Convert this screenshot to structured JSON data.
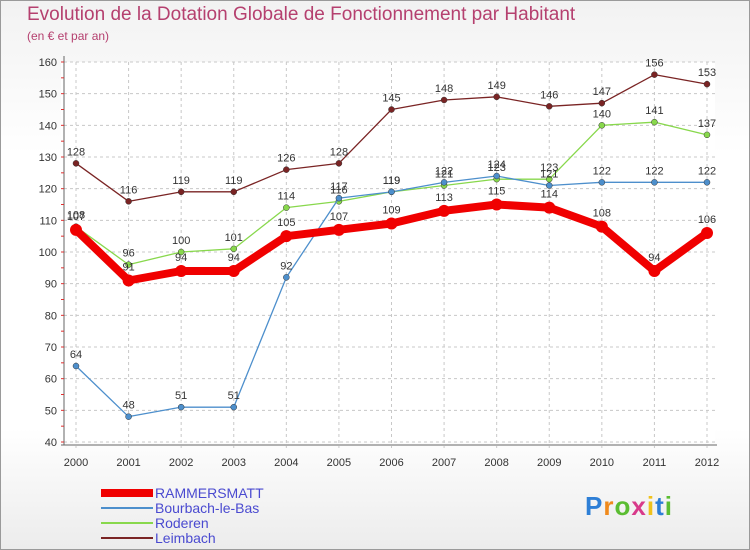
{
  "chart_data": {
    "type": "line",
    "title": "Evolution de la Dotation Globale de Fonctionnement par Habitant",
    "subtitle": "(en € et par an)",
    "x": [
      "2000",
      "2001",
      "2002",
      "2003",
      "2004",
      "2005",
      "2006",
      "2007",
      "2008",
      "2009",
      "2010",
      "2011",
      "2012"
    ],
    "ylim": [
      40,
      160
    ],
    "yticks": [
      40,
      50,
      60,
      70,
      80,
      90,
      100,
      110,
      120,
      130,
      140,
      150,
      160
    ],
    "grid": true,
    "series": [
      {
        "name": "Leimbach",
        "color": "#7a2424",
        "values": [
          128,
          116,
          119,
          119,
          126,
          128,
          145,
          148,
          149,
          146,
          147,
          156,
          153
        ]
      },
      {
        "name": "Roderen",
        "color": "#88d84c",
        "values": [
          108,
          96,
          100,
          101,
          114,
          116,
          119,
          121,
          123,
          123,
          140,
          141,
          137
        ]
      },
      {
        "name": "Bourbach-le-Bas",
        "color": "#4d8fcc",
        "values": [
          64,
          48,
          51,
          51,
          92,
          117,
          119,
          122,
          124,
          121,
          122,
          122,
          122
        ]
      },
      {
        "name": "RAMMERSMATT",
        "color": "#f00000",
        "values": [
          107,
          91,
          94,
          94,
          105,
          107,
          109,
          113,
          115,
          114,
          108,
          94,
          106
        ]
      }
    ],
    "legend": [
      "RAMMERSMATT",
      "Bourbach-le-Bas",
      "Roderen",
      "Leimbach"
    ],
    "legend_position": "bottom-left"
  },
  "logo": {
    "letters": [
      "P",
      "r",
      "o",
      "x",
      "i",
      "t",
      "i"
    ],
    "colors": [
      "#2e7fd6",
      "#f08a1c",
      "#5bbd32",
      "#d83a8a",
      "#f0c21c",
      "#2e7fd6",
      "#5bbd32"
    ]
  }
}
